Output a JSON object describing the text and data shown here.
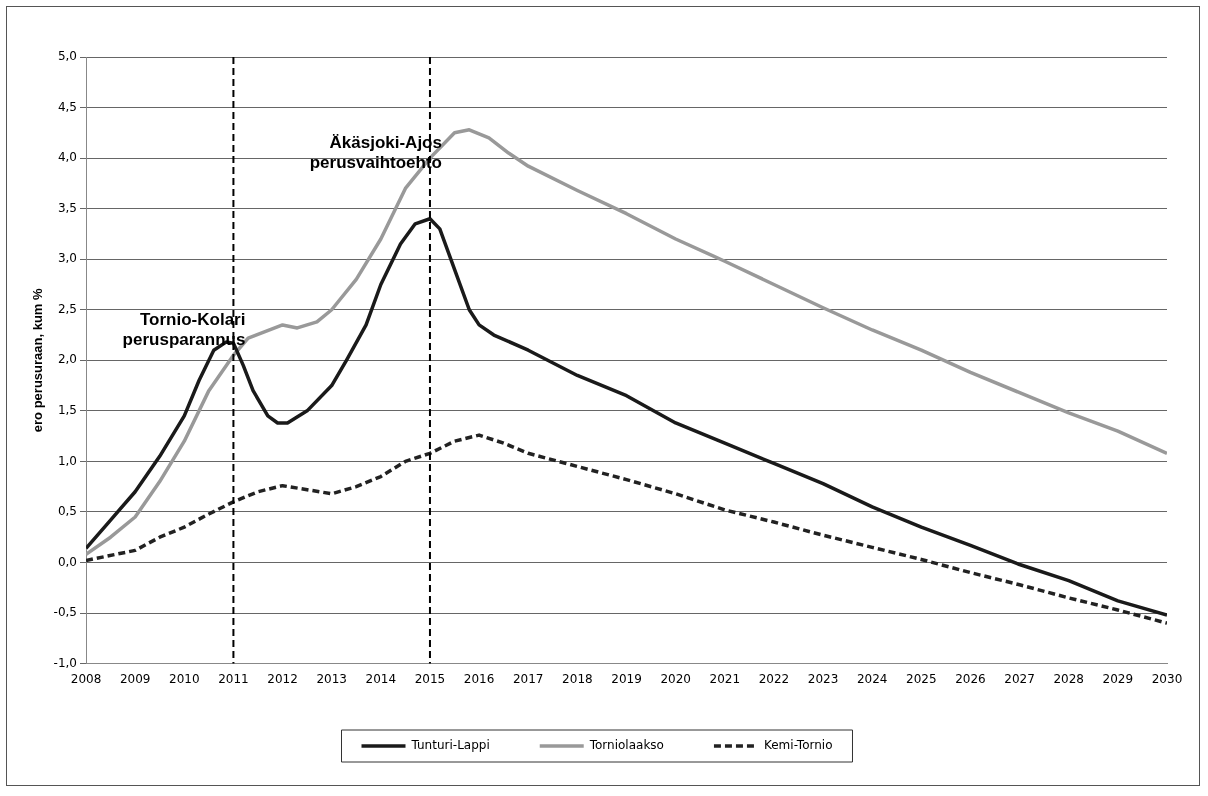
{
  "chart_data": {
    "type": "line",
    "ylabel": "ero perusuraan, kum %",
    "xlim": [
      2008,
      2030
    ],
    "xticks": [
      2008,
      2009,
      2010,
      2011,
      2012,
      2013,
      2014,
      2015,
      2016,
      2017,
      2018,
      2019,
      2020,
      2021,
      2022,
      2023,
      2024,
      2025,
      2026,
      2027,
      2028,
      2029,
      2030
    ],
    "ylim": [
      -1,
      5
    ],
    "yticks": [
      {
        "value": -1,
        "label": "-1,0"
      },
      {
        "value": -0.5,
        "label": "-0,5"
      },
      {
        "value": 0,
        "label": "0,0"
      },
      {
        "value": 0.5,
        "label": "0,5"
      },
      {
        "value": 1,
        "label": "1,0"
      },
      {
        "value": 1.5,
        "label": "1,5"
      },
      {
        "value": 2,
        "label": "2,0"
      },
      {
        "value": 2.5,
        "label": "2,5"
      },
      {
        "value": 3,
        "label": "3,0"
      },
      {
        "value": 3.5,
        "label": "3,5"
      },
      {
        "value": 4,
        "label": "4,0"
      },
      {
        "value": 4.5,
        "label": "4,5"
      },
      {
        "value": 5,
        "label": "5,0"
      }
    ],
    "grid": "y",
    "legend": "bottom",
    "marker": "none",
    "ref_lines": [
      {
        "axis": "x",
        "value": 2011,
        "label": "Tornio-Kolari perusparannus",
        "color": "#000000",
        "line_style": "dashed"
      },
      {
        "axis": "x",
        "value": 2015,
        "label": "Äkäsjoki-Ajos perusvaihtoehto",
        "color": "#000000",
        "line_style": "dashed"
      }
    ],
    "series": [
      {
        "name": "Tunturi-Lappi",
        "color": "#1a1a1a",
        "line_style": "solid",
        "x": [
          2008,
          2008.5,
          2009,
          2009.5,
          2010,
          2010.3,
          2010.6,
          2010.85,
          2011,
          2011.2,
          2011.4,
          2011.7,
          2011.9,
          2012.1,
          2012.5,
          2013,
          2013.3,
          2013.7,
          2014,
          2014.4,
          2014.7,
          2015,
          2015.2,
          2015.5,
          2015.8,
          2016,
          2016.3,
          2017,
          2018,
          2019,
          2020,
          2021,
          2022,
          2023,
          2024,
          2025,
          2026,
          2027,
          2028,
          2029,
          2030
        ],
        "values": [
          0.14,
          0.42,
          0.7,
          1.05,
          1.45,
          1.8,
          2.1,
          2.18,
          2.17,
          1.95,
          1.7,
          1.45,
          1.38,
          1.38,
          1.5,
          1.75,
          2.0,
          2.35,
          2.75,
          3.15,
          3.35,
          3.4,
          3.3,
          2.9,
          2.5,
          2.35,
          2.25,
          2.1,
          1.85,
          1.65,
          1.38,
          1.18,
          0.98,
          0.78,
          0.55,
          0.35,
          0.17,
          -0.02,
          -0.18,
          -0.38,
          -0.52
        ]
      },
      {
        "name": "Torniolaakso",
        "color": "#999999",
        "line_style": "solid",
        "x": [
          2008,
          2008.5,
          2009,
          2009.5,
          2010,
          2010.5,
          2011,
          2011.3,
          2012,
          2012.3,
          2012.7,
          2013,
          2013.5,
          2014,
          2014.5,
          2015,
          2015.5,
          2015.8,
          2016.2,
          2016.6,
          2017,
          2018,
          2019,
          2020,
          2021,
          2022,
          2023,
          2024,
          2025,
          2026,
          2027,
          2028,
          2029,
          2030
        ],
        "values": [
          0.08,
          0.25,
          0.45,
          0.8,
          1.2,
          1.7,
          2.05,
          2.22,
          2.35,
          2.32,
          2.38,
          2.5,
          2.8,
          3.2,
          3.7,
          4.0,
          4.25,
          4.28,
          4.2,
          4.05,
          3.92,
          3.68,
          3.45,
          3.2,
          2.98,
          2.75,
          2.52,
          2.3,
          2.1,
          1.88,
          1.68,
          1.48,
          1.3,
          1.08
        ]
      },
      {
        "name": "Kemi-Tornio",
        "color": "#222222",
        "line_style": "dashed",
        "x": [
          2008,
          2009,
          2009.5,
          2010,
          2010.5,
          2011,
          2011.5,
          2012,
          2012.5,
          2013,
          2013.5,
          2014,
          2014.5,
          2015,
          2015.5,
          2016,
          2016.5,
          2017,
          2018,
          2019,
          2020,
          2021,
          2022,
          2023,
          2024,
          2025,
          2026,
          2027,
          2028,
          2029,
          2030
        ],
        "values": [
          0.02,
          0.12,
          0.25,
          0.35,
          0.48,
          0.6,
          0.7,
          0.76,
          0.72,
          0.68,
          0.75,
          0.85,
          1.0,
          1.08,
          1.2,
          1.26,
          1.18,
          1.08,
          0.95,
          0.82,
          0.68,
          0.52,
          0.4,
          0.27,
          0.15,
          0.03,
          -0.1,
          -0.22,
          -0.35,
          -0.47,
          -0.6
        ]
      }
    ]
  }
}
